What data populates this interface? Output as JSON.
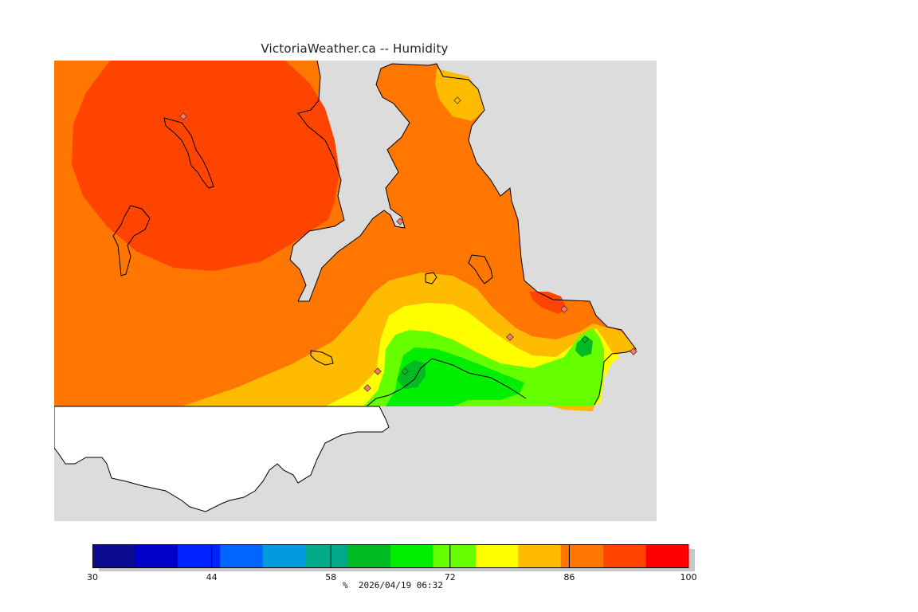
{
  "title": "VictoriaWeather.ca -- Humidity",
  "legend": {
    "unit": "%",
    "timestamp": "2026/04/19 06:32",
    "min": 30,
    "max": 100,
    "tick_labels": [
      "30",
      "44",
      "58",
      "72",
      "86",
      "100"
    ],
    "tick_values": [
      30,
      44,
      58,
      72,
      86,
      100
    ],
    "bins": [
      {
        "from": 30,
        "to": 35,
        "color": "#0b0b8f"
      },
      {
        "from": 35,
        "to": 40,
        "color": "#0000c8"
      },
      {
        "from": 40,
        "to": 45,
        "color": "#0022ff"
      },
      {
        "from": 45,
        "to": 50,
        "color": "#0066ff"
      },
      {
        "from": 50,
        "to": 55,
        "color": "#0099dd"
      },
      {
        "from": 55,
        "to": 60,
        "color": "#00aa88"
      },
      {
        "from": 60,
        "to": 65,
        "color": "#00bb22"
      },
      {
        "from": 65,
        "to": 70,
        "color": "#00ee00"
      },
      {
        "from": 70,
        "to": 75,
        "color": "#66ff00"
      },
      {
        "from": 75,
        "to": 80,
        "color": "#ffff00"
      },
      {
        "from": 80,
        "to": 85,
        "color": "#ffbb00"
      },
      {
        "from": 85,
        "to": 90,
        "color": "#ff7700"
      },
      {
        "from": 90,
        "to": 95,
        "color": "#ff4400"
      },
      {
        "from": 95,
        "to": 100,
        "color": "#ff0000"
      }
    ]
  },
  "colors": {
    "sea": "#dcdcdc",
    "no_data_land": "#ffffff",
    "coastline": "#000000",
    "station_marker": "#ff7766"
  },
  "stations_count": 12
}
